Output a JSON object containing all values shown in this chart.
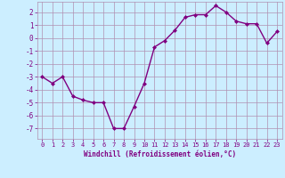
{
  "x": [
    0,
    1,
    2,
    3,
    4,
    5,
    6,
    7,
    8,
    9,
    10,
    11,
    12,
    13,
    14,
    15,
    16,
    17,
    18,
    19,
    20,
    21,
    22,
    23
  ],
  "y": [
    -3,
    -3.5,
    -3,
    -4.5,
    -4.8,
    -5,
    -5,
    -7,
    -7,
    -5.3,
    -3.5,
    -0.7,
    -0.2,
    0.6,
    1.6,
    1.8,
    1.8,
    2.5,
    2,
    1.3,
    1.1,
    1.1,
    -0.4,
    0.5
  ],
  "line_color": "#800080",
  "marker": "D",
  "marker_size": 2.0,
  "bg_color": "#cceeff",
  "grid_color": "#b090b0",
  "xlabel": "Windchill (Refroidissement éolien,°C)",
  "xlabel_color": "#800080",
  "xlim": [
    -0.5,
    23.5
  ],
  "ylim": [
    -7.8,
    2.8
  ],
  "yticks": [
    -7,
    -6,
    -5,
    -4,
    -3,
    -2,
    -1,
    0,
    1,
    2
  ],
  "xticks": [
    0,
    1,
    2,
    3,
    4,
    5,
    6,
    7,
    8,
    9,
    10,
    11,
    12,
    13,
    14,
    15,
    16,
    17,
    18,
    19,
    20,
    21,
    22,
    23
  ],
  "tick_color": "#800080",
  "line_width": 1.0,
  "tick_fontsize": 5.0,
  "xlabel_fontsize": 5.5
}
